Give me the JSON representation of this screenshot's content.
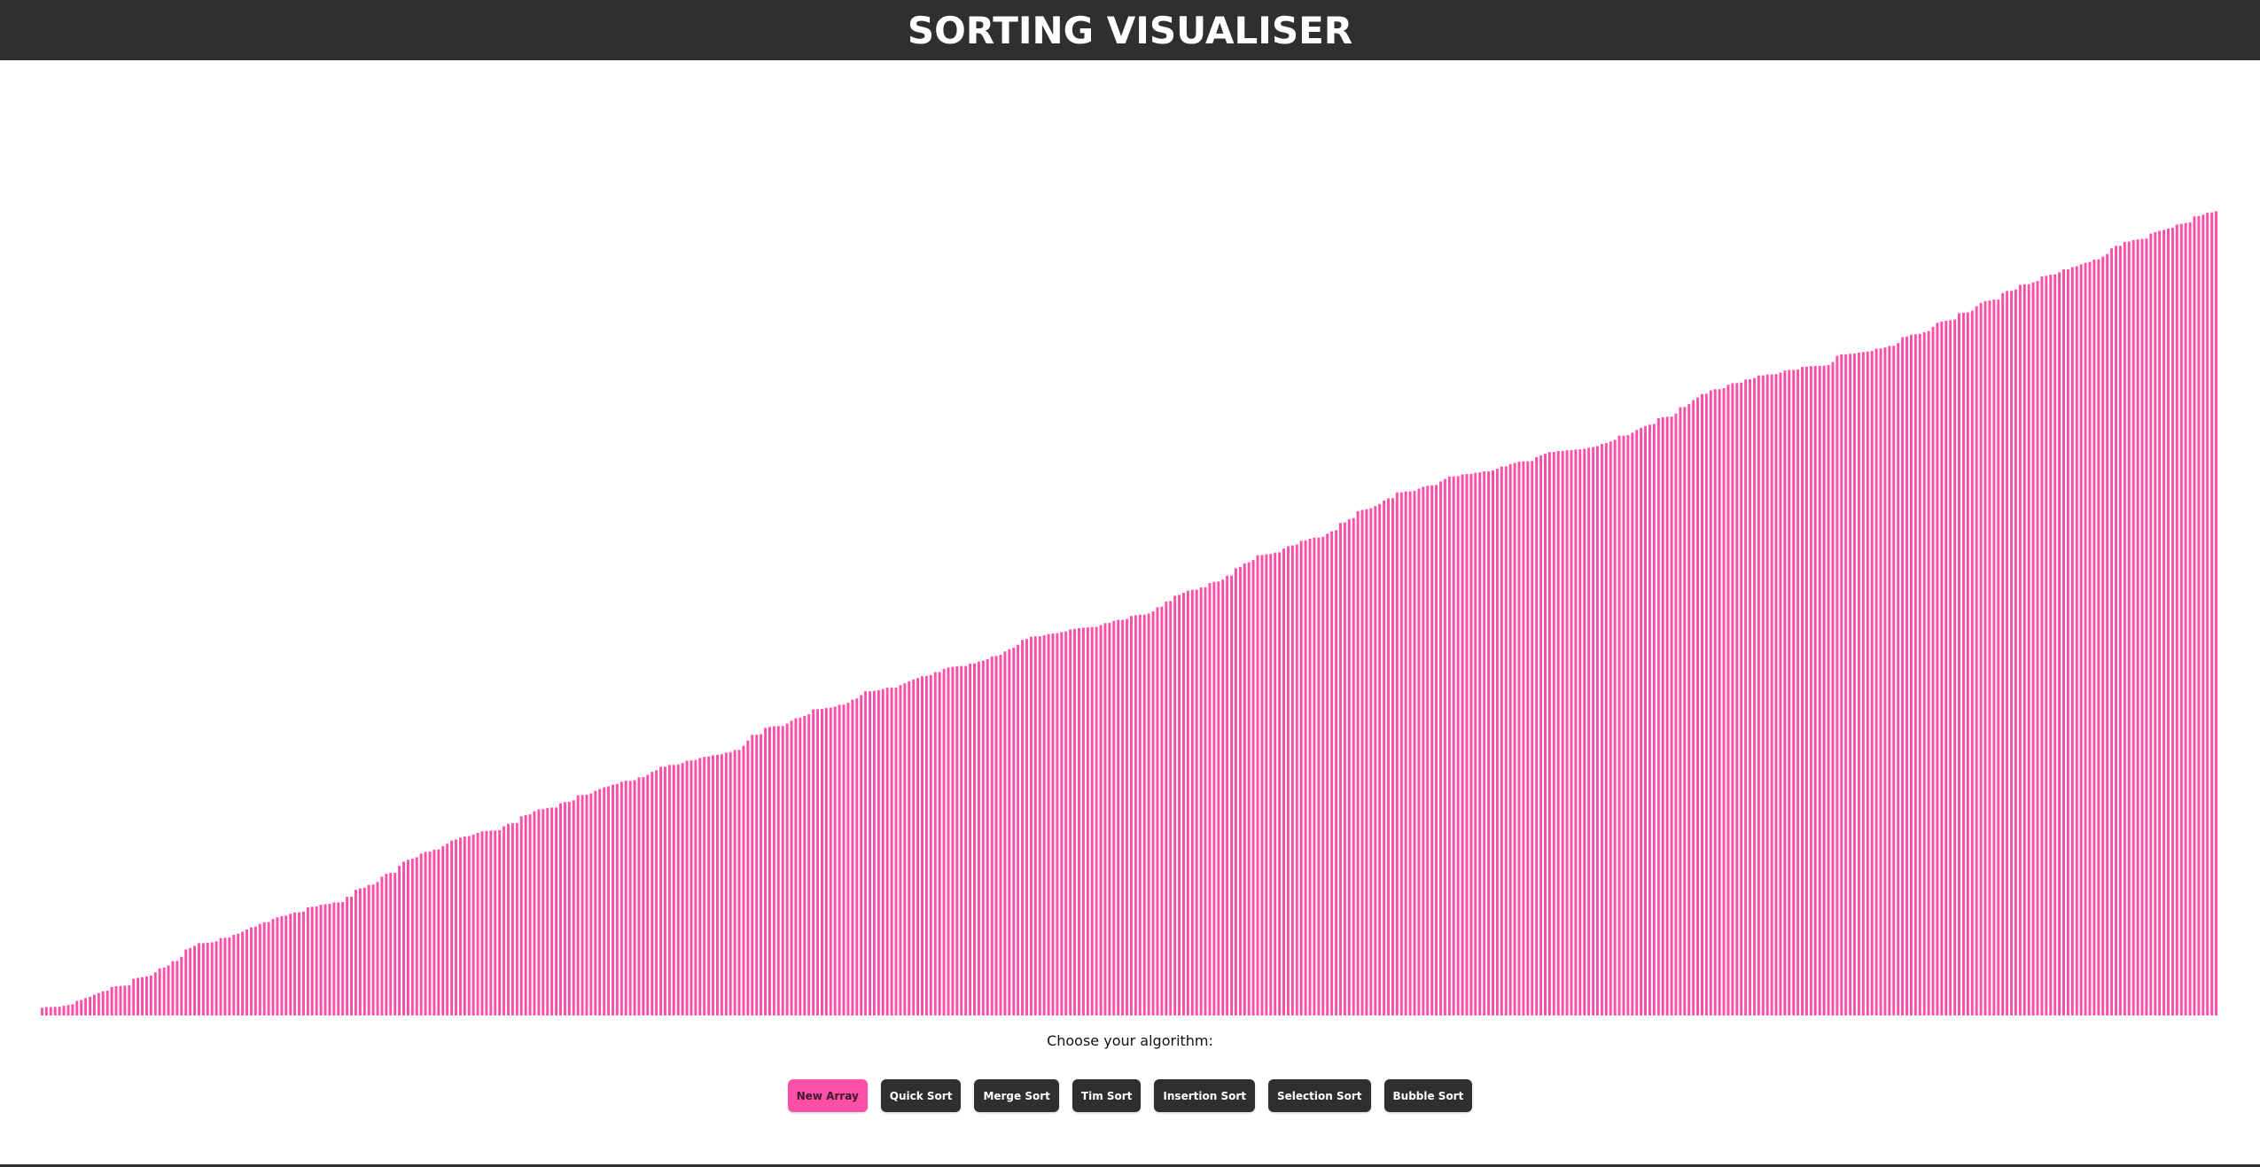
{
  "header": {
    "title": "SORTING VISUALISER"
  },
  "chart_data": {
    "type": "bar",
    "count": 500,
    "values_min": 5,
    "values_max": 1000,
    "trend": "sorted-ascending",
    "bar_color": "#ff4fa7"
  },
  "controls": {
    "prompt": "Choose your algorithm:",
    "buttons": [
      {
        "label": "New Array",
        "primary": true
      },
      {
        "label": "Quick Sort",
        "primary": false
      },
      {
        "label": "Merge Sort",
        "primary": false
      },
      {
        "label": "Tim Sort",
        "primary": false
      },
      {
        "label": "Insertion Sort",
        "primary": false
      },
      {
        "label": "Selection Sort",
        "primary": false
      },
      {
        "label": "Bubble Sort",
        "primary": false
      }
    ]
  },
  "colors": {
    "header_bg": "#2f2f2f",
    "accent": "#ff4fa7",
    "button_bg": "#2f2f2f",
    "button_text": "#ffffff"
  }
}
